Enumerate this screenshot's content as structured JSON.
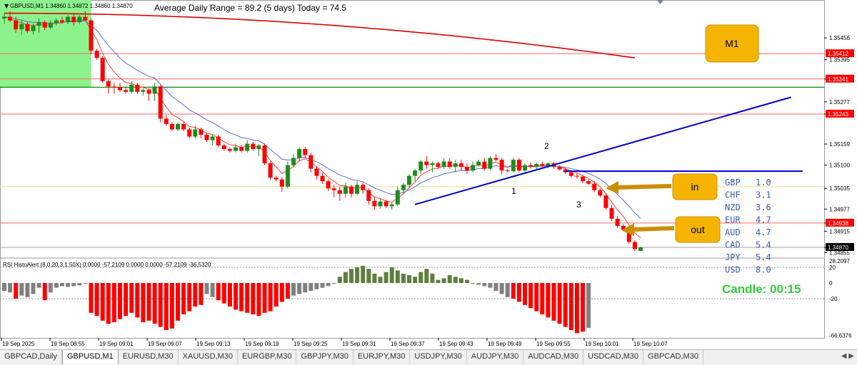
{
  "window": {
    "title": "GBPUSD,M1  1.34860 1.34872 1.34860 1.34870",
    "adr_text": "Average Daily Range = 89.2 (5 days)    Today = 74.5",
    "timeframe_badge": "M1",
    "candle_timer": "Candle:  00:15"
  },
  "annotations": {
    "in_label": "in",
    "out_label": "out",
    "point1": "1",
    "point2": "2",
    "point3": "3"
  },
  "strength_table": [
    {
      "currency": "GBP",
      "value": "1.0"
    },
    {
      "currency": "CHF",
      "value": "3.1"
    },
    {
      "currency": "NZD",
      "value": "3.6"
    },
    {
      "currency": "EUR",
      "value": "4.7"
    },
    {
      "currency": "AUD",
      "value": "4.7"
    },
    {
      "currency": "CAD",
      "value": "5.4"
    },
    {
      "currency": "JPY",
      "value": "5.4"
    },
    {
      "currency": "USD",
      "value": "8.0"
    }
  ],
  "tabs": [
    "GBPCAD,Daily",
    "GBPUSD,M1",
    "EURUSD,M30",
    "XAUUSD,M30",
    "EURGBP,M30",
    "GBPJPY,M30",
    "EURJPY,M30",
    "USDJPY,M30",
    "AUDJPY,M30",
    "AUDCAD,M30",
    "USDCAD,M30",
    "GBPCAD,M30"
  ],
  "active_tab": 1,
  "colors": {
    "bull": "#1e8c1e",
    "bear": "#ff0000",
    "panel_bg": "#ffffff",
    "badge": "#f5b400",
    "timer": "#2fcc3a",
    "strength_text": "#3f5fa8",
    "hline": "#ff6666",
    "green_line": "#0a8a0a",
    "trend": "#0000cc"
  },
  "chart_data": [
    {
      "type": "candlestick",
      "symbol": "GBPUSD",
      "timeframe": "M1",
      "ylim": [
        1.3484,
        1.35562
      ],
      "y_ticks": [
        "1.35456",
        "1.35395",
        "1.35341",
        "1.35277",
        "1.35243",
        "1.35159",
        "1.35100",
        "1.35035",
        "1.34977",
        "1.34938",
        "1.34915",
        "1.34870",
        "1.34855"
      ],
      "price_labels_highlighted": [
        "1.35412",
        "1.35341",
        "1.35243",
        "1.34938",
        "1.34870"
      ],
      "x_labels": [
        "19 Sep 2025",
        "19 Sep 08:55",
        "19 Sep 09:01",
        "19 Sep 09:07",
        "19 Sep 09:13",
        "19 Sep 09:19",
        "19 Sep 09:25",
        "19 Sep 09:31",
        "19 Sep 09:37",
        "19 Sep 09:43",
        "19 Sep 09:49",
        "19 Sep 09:55",
        "19 Sep 10:01",
        "19 Sep 10:07"
      ],
      "horizontal_levels": {
        "red": [
          1.35412,
          1.35341,
          1.35243,
          1.34938
        ],
        "green": 1.35318,
        "yellow": 1.3504,
        "current": 1.3487
      },
      "highlight_zone": {
        "x_from": 0,
        "x_to": 15,
        "y_from": 1.35318,
        "y_to": 1.35562
      },
      "candles": [
        [
          1.3551,
          1.35525,
          1.35495,
          1.35515
        ],
        [
          1.35515,
          1.3553,
          1.355,
          1.35505
        ],
        [
          1.35505,
          1.35515,
          1.3547,
          1.3548
        ],
        [
          1.3548,
          1.35505,
          1.35465,
          1.35495
        ],
        [
          1.35495,
          1.355,
          1.3547,
          1.35475
        ],
        [
          1.35475,
          1.35495,
          1.35465,
          1.3549
        ],
        [
          1.3549,
          1.3551,
          1.3547,
          1.355
        ],
        [
          1.355,
          1.35505,
          1.35478,
          1.35485
        ],
        [
          1.35485,
          1.35505,
          1.3548,
          1.35498
        ],
        [
          1.35498,
          1.3551,
          1.3549,
          1.35505
        ],
        [
          1.35505,
          1.35515,
          1.35495,
          1.355
        ],
        [
          1.355,
          1.3552,
          1.35495,
          1.35515
        ],
        [
          1.35515,
          1.35525,
          1.3549,
          1.355
        ],
        [
          1.355,
          1.3552,
          1.35495,
          1.35515
        ],
        [
          1.35515,
          1.3553,
          1.35505,
          1.35505
        ],
        [
          1.35505,
          1.3551,
          1.3541,
          1.3542
        ],
        [
          1.3542,
          1.35425,
          1.35395,
          1.354
        ],
        [
          1.354,
          1.35405,
          1.3533,
          1.35335
        ],
        [
          1.35335,
          1.3534,
          1.353,
          1.3532
        ],
        [
          1.3532,
          1.3533,
          1.353,
          1.35318
        ],
        [
          1.35318,
          1.3533,
          1.35305,
          1.3531
        ],
        [
          1.3531,
          1.3532,
          1.353,
          1.35305
        ],
        [
          1.35305,
          1.35335,
          1.353,
          1.35325
        ],
        [
          1.35325,
          1.3533,
          1.353,
          1.35305
        ],
        [
          1.35305,
          1.35315,
          1.35295,
          1.3531
        ],
        [
          1.3531,
          1.35315,
          1.3528,
          1.353
        ],
        [
          1.353,
          1.3533,
          1.3528,
          1.3532
        ],
        [
          1.3532,
          1.35325,
          1.3522,
          1.3523
        ],
        [
          1.3523,
          1.3524,
          1.3521,
          1.35215
        ],
        [
          1.35215,
          1.3522,
          1.35195,
          1.352
        ],
        [
          1.352,
          1.3522,
          1.35195,
          1.35215
        ],
        [
          1.35215,
          1.3522,
          1.35195,
          1.352
        ],
        [
          1.352,
          1.35205,
          1.35175,
          1.3518
        ],
        [
          1.3518,
          1.3521,
          1.35175,
          1.352
        ],
        [
          1.352,
          1.35205,
          1.35175,
          1.35185
        ],
        [
          1.35185,
          1.3519,
          1.35165,
          1.3517
        ],
        [
          1.3517,
          1.35185,
          1.35155,
          1.3518
        ],
        [
          1.3518,
          1.35185,
          1.3515,
          1.35155
        ],
        [
          1.35155,
          1.3516,
          1.3514,
          1.35145
        ],
        [
          1.35145,
          1.3515,
          1.35135,
          1.3514
        ],
        [
          1.3514,
          1.3516,
          1.35135,
          1.3515
        ],
        [
          1.3515,
          1.35158,
          1.35135,
          1.3514
        ],
        [
          1.3514,
          1.3517,
          1.35135,
          1.3516
        ],
        [
          1.3516,
          1.35165,
          1.3514,
          1.35145
        ],
        [
          1.35145,
          1.3516,
          1.35125,
          1.35155
        ],
        [
          1.35155,
          1.3516,
          1.351,
          1.35105
        ],
        [
          1.35105,
          1.3511,
          1.3506,
          1.35065
        ],
        [
          1.35065,
          1.3507,
          1.35055,
          1.3506
        ],
        [
          1.3506,
          1.35065,
          1.35025,
          1.3504
        ],
        [
          1.3504,
          1.3511,
          1.35035,
          1.351
        ],
        [
          1.351,
          1.3513,
          1.35095,
          1.3512
        ],
        [
          1.3512,
          1.3515,
          1.3511,
          1.35145
        ],
        [
          1.35145,
          1.3515,
          1.3512,
          1.35128
        ],
        [
          1.35128,
          1.35135,
          1.3508,
          1.3509
        ],
        [
          1.3509,
          1.35095,
          1.3506,
          1.3507
        ],
        [
          1.3507,
          1.35078,
          1.35048,
          1.35055
        ],
        [
          1.35055,
          1.3506,
          1.35028,
          1.35035
        ],
        [
          1.35035,
          1.35045,
          1.3501,
          1.3503
        ],
        [
          1.3503,
          1.3504,
          1.35,
          1.3502
        ],
        [
          1.3502,
          1.3505,
          1.3501,
          1.3504
        ],
        [
          1.3504,
          1.35045,
          1.3501,
          1.3502
        ],
        [
          1.3502,
          1.35055,
          1.35015,
          1.35045
        ],
        [
          1.35045,
          1.3505,
          1.3502,
          1.3503
        ],
        [
          1.3503,
          1.35035,
          1.3499,
          1.35
        ],
        [
          1.35,
          1.3501,
          1.34975,
          1.34985
        ],
        [
          1.34985,
          1.35005,
          1.34978,
          1.34998
        ],
        [
          1.34998,
          1.35003,
          1.3498,
          1.34985
        ],
        [
          1.34985,
          1.34995,
          1.34975,
          1.3499
        ],
        [
          1.3499,
          1.3504,
          1.34985,
          1.3503
        ],
        [
          1.3503,
          1.3505,
          1.3502,
          1.35045
        ],
        [
          1.35045,
          1.35075,
          1.35035,
          1.3507
        ],
        [
          1.3507,
          1.3509,
          1.35055,
          1.35085
        ],
        [
          1.35085,
          1.35115,
          1.35075,
          1.3511
        ],
        [
          1.3511,
          1.35125,
          1.3509,
          1.351
        ],
        [
          1.351,
          1.3511,
          1.3508,
          1.35105
        ],
        [
          1.35105,
          1.3511,
          1.3509,
          1.35095
        ],
        [
          1.35095,
          1.3512,
          1.3509,
          1.3511
        ],
        [
          1.3511,
          1.3512,
          1.3509,
          1.35095
        ],
        [
          1.35095,
          1.35115,
          1.3508,
          1.35105
        ],
        [
          1.35105,
          1.35115,
          1.35085,
          1.35095
        ],
        [
          1.35095,
          1.35105,
          1.35075,
          1.35085
        ],
        [
          1.35085,
          1.3511,
          1.3508,
          1.351
        ],
        [
          1.351,
          1.35115,
          1.35095,
          1.3511
        ],
        [
          1.3511,
          1.3512,
          1.35085,
          1.3509
        ],
        [
          1.3509,
          1.35125,
          1.35085,
          1.3512
        ],
        [
          1.3512,
          1.3513,
          1.3511,
          1.35115
        ],
        [
          1.35115,
          1.3512,
          1.35075,
          1.35085
        ],
        [
          1.35085,
          1.3509,
          1.3508,
          1.35083
        ],
        [
          1.35083,
          1.3512,
          1.3508,
          1.35115
        ],
        [
          1.35115,
          1.3512,
          1.3508,
          1.35085
        ],
        [
          1.35085,
          1.35105,
          1.3508,
          1.351
        ],
        [
          1.351,
          1.35108,
          1.3509,
          1.35095
        ],
        [
          1.35095,
          1.35108,
          1.35088,
          1.35103
        ],
        [
          1.35103,
          1.3511,
          1.3509,
          1.35098
        ],
        [
          1.35098,
          1.35108,
          1.35092,
          1.35105
        ],
        [
          1.35105,
          1.3511,
          1.3509,
          1.35095
        ],
        [
          1.35095,
          1.351,
          1.35085,
          1.35088
        ],
        [
          1.35088,
          1.35092,
          1.35075,
          1.3508
        ],
        [
          1.3508,
          1.35085,
          1.35065,
          1.3507
        ],
        [
          1.3507,
          1.35078,
          1.35062,
          1.35068
        ],
        [
          1.35068,
          1.35072,
          1.3505,
          1.35055
        ],
        [
          1.35055,
          1.3506,
          1.35045,
          1.35048
        ],
        [
          1.35048,
          1.35055,
          1.35025,
          1.3503
        ],
        [
          1.3503,
          1.35035,
          1.3501,
          1.35015
        ],
        [
          1.35015,
          1.3502,
          1.34975,
          1.3498
        ],
        [
          1.3498,
          1.34988,
          1.34945,
          1.3495
        ],
        [
          1.3495,
          1.34958,
          1.34925,
          1.3493
        ],
        [
          1.3493,
          1.34935,
          1.34915,
          1.3492
        ],
        [
          1.3492,
          1.34925,
          1.3488,
          1.34885
        ],
        [
          1.34885,
          1.3489,
          1.3486,
          1.34865
        ],
        [
          1.3486,
          1.34872,
          1.3486,
          1.3487
        ]
      ],
      "moving_averages": [
        {
          "name": "MA red fast",
          "color": "#ff4040"
        },
        {
          "name": "MA blue",
          "color": "#5a6ed8"
        },
        {
          "name": "MA red slow",
          "color": "#e00000"
        }
      ],
      "trendline": {
        "from": [
          71,
          1.3499
        ],
        "to": [
          136,
          1.3529
        ]
      },
      "neckline": {
        "from": [
          97,
          1.35083
        ],
        "to": [
          138,
          1.35083
        ]
      }
    },
    {
      "type": "bar",
      "title": "RSI HistoAlert (8,0,20,3,1.50X) 0.0000 -57.2109 0.0000 0.0000 -57.2109 -36.5320",
      "ylim": [
        -70,
        30
      ],
      "y_ticks": [
        "28.2097",
        "20",
        "0",
        "-20",
        "-66.6376"
      ],
      "levels": [
        20,
        -20
      ],
      "values": [
        -10,
        -12,
        -20,
        -16,
        -18,
        -14,
        -6,
        -22,
        -12,
        -6,
        -4,
        -5,
        -4,
        -3,
        0,
        -38,
        -42,
        -48,
        -52,
        -50,
        -46,
        -42,
        -38,
        -44,
        -50,
        -48,
        -52,
        -56,
        -60,
        -58,
        -48,
        -40,
        -36,
        -30,
        -28,
        -14,
        -18,
        -22,
        -26,
        -30,
        -34,
        -36,
        -38,
        -40,
        -42,
        -38,
        -36,
        -30,
        -24,
        -20,
        -16,
        -14,
        -12,
        -10,
        -8,
        -6,
        -4,
        0,
        8,
        14,
        18,
        20,
        22,
        18,
        12,
        8,
        14,
        20,
        16,
        12,
        10,
        8,
        14,
        18,
        12,
        4,
        6,
        10,
        8,
        6,
        4,
        0,
        -2,
        -4,
        -6,
        -10,
        -14,
        -18,
        -20,
        -24,
        -28,
        -32,
        -36,
        -40,
        -44,
        -48,
        -52,
        -56,
        -60,
        -64,
        -62,
        -57.2
      ]
    }
  ]
}
